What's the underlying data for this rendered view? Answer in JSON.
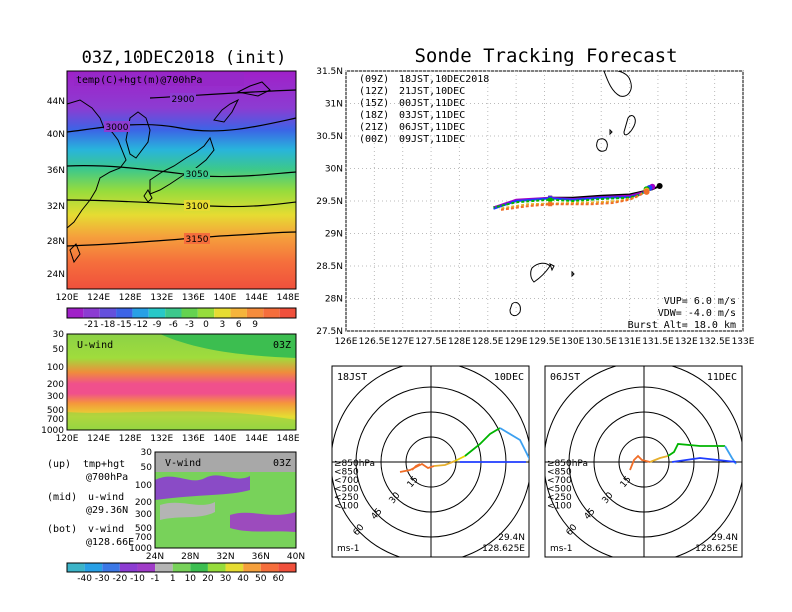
{
  "main_map": {
    "title": "03Z,10DEC2018 (init)",
    "label": "temp(C)+hgt(m)@700hPa",
    "contours": [
      "2900",
      "3000",
      "3050",
      "3100",
      "3150"
    ],
    "lat_ticks": [
      "44N",
      "40N",
      "36N",
      "32N",
      "28N",
      "24N"
    ],
    "lon_ticks": [
      "120E",
      "124E",
      "128E",
      "132E",
      "136E",
      "140E",
      "144E",
      "148E"
    ],
    "colorbar": [
      "-21",
      "-18",
      "-15",
      "-12",
      "-9",
      "-6",
      "-3",
      "0",
      "3",
      "6",
      "9"
    ]
  },
  "uwind": {
    "label": "U-wind",
    "time": "03Z",
    "p_ticks": [
      "30",
      "50",
      "100",
      "200",
      "300",
      "500",
      "700",
      "1000"
    ],
    "lon_ticks": [
      "120E",
      "124E",
      "128E",
      "132E",
      "136E",
      "140E",
      "144E",
      "148E"
    ]
  },
  "vwind": {
    "label": "V-wind",
    "time": "03Z",
    "p_ticks": [
      "30",
      "50",
      "100",
      "200",
      "300",
      "500",
      "700",
      "1000"
    ],
    "lat_ticks": [
      "24N",
      "28N",
      "32N",
      "36N",
      "40N"
    ],
    "colorbar": [
      "-40",
      "-30",
      "-20",
      "-10",
      "-1",
      "1",
      "10",
      "20",
      "30",
      "40",
      "50",
      "60"
    ]
  },
  "notes": [
    {
      "k": "(up)",
      "v": "tmp+hgt"
    },
    {
      "k": "",
      "v": "@700hPa"
    },
    {
      "k": "(mid)",
      "v": "u-wind"
    },
    {
      "k": "",
      "v": "@29.36N"
    },
    {
      "k": "(bot)",
      "v": "v-wind"
    },
    {
      "k": "",
      "v": "@128.66E"
    }
  ],
  "tracking": {
    "title": "Sonde Tracking Forecast",
    "legend": [
      {
        "code": "(09Z)",
        "text": "18JST,10DEC2018",
        "color": "#000000"
      },
      {
        "code": "(12Z)",
        "text": "21JST,10DEC",
        "color": "#a000c8"
      },
      {
        "code": "(15Z)",
        "text": "00JST,11DEC",
        "color": "#1e3cff"
      },
      {
        "code": "(18Z)",
        "text": "03JST,11DEC",
        "color": "#00b400"
      },
      {
        "code": "(21Z)",
        "text": "06JST,11DEC",
        "color": "#e6af2d"
      },
      {
        "code": "(00Z)",
        "text": "09JST,11DEC",
        "color": "#f06e28"
      }
    ],
    "lat_ticks": [
      "31.5N",
      "31N",
      "30.5N",
      "30N",
      "29.5N",
      "29N",
      "28.5N",
      "28N",
      "27.5N"
    ],
    "lon_ticks": [
      "126E",
      "126.5E",
      "127E",
      "127.5E",
      "128E",
      "128.5E",
      "129E",
      "129.5E",
      "130E",
      "130.5E",
      "131E",
      "131.5E",
      "132E",
      "132.5E",
      "133E"
    ],
    "info": [
      "VUP= 6.0 m/s",
      "VDW= -4.0 m/s",
      "Burst Alt= 18.0 km"
    ]
  },
  "hodo_left": {
    "time": "18JST",
    "date": "10DEC",
    "lat": "29.4N",
    "lon": "128.625E",
    "unit": "ms-1",
    "rings": [
      "15",
      "30",
      "45",
      "60"
    ]
  },
  "hodo_right": {
    "time": "06JST",
    "date": "11DEC",
    "lat": "29.4N",
    "lon": "128.625E",
    "unit": "ms-1",
    "rings": [
      "15",
      "30",
      "45",
      "60"
    ]
  },
  "hodo_legend": [
    {
      "t": "≥850hPa",
      "c": "#f06e28"
    },
    {
      "t": "<850",
      "c": "#e6af2d"
    },
    {
      "t": "<700",
      "c": "#e6d200"
    },
    {
      "t": "<500",
      "c": "#00b400"
    },
    {
      "t": "<250",
      "c": "#3ca0f0"
    },
    {
      "t": "<100",
      "c": "#1e3cff"
    }
  ],
  "chart_data": [
    {
      "type": "heatmap",
      "title": "03Z,10DEC2018 (init)",
      "subtitle": "temp(C)+hgt(m)@700hPa",
      "x_range": [
        "120E",
        "149E"
      ],
      "y_range": [
        "21N",
        "47N"
      ],
      "colorbar_levels": [
        -21,
        -18,
        -15,
        -12,
        -9,
        -6,
        -3,
        0,
        3,
        6,
        9
      ],
      "contour_labels": [
        2900,
        3000,
        3050,
        3100,
        3150
      ]
    },
    {
      "type": "heatmap",
      "title": "U-wind",
      "x_range": [
        "120E",
        "149E"
      ],
      "y_ticks": [
        30,
        50,
        100,
        200,
        300,
        500,
        700,
        1000
      ]
    },
    {
      "type": "heatmap",
      "title": "V-wind",
      "x_range": [
        "24N",
        "40N"
      ],
      "y_ticks": [
        30,
        50,
        100,
        200,
        300,
        500,
        700,
        1000
      ],
      "colorbar_levels": [
        -40,
        -30,
        -20,
        -10,
        -1,
        1,
        10,
        20,
        30,
        40,
        50,
        60
      ]
    },
    {
      "type": "line",
      "title": "Sonde Tracking Forecast",
      "xlim": [
        126,
        133
      ],
      "ylim": [
        27.5,
        31.5
      ],
      "series": [
        {
          "name": "(09Z) 18JST,10DEC2018",
          "points": [
            [
              131.53,
              29.73
            ],
            [
              131.4,
              29.68
            ],
            [
              131.0,
              29.6
            ],
            [
              130.5,
              29.58
            ],
            [
              130.0,
              29.55
            ],
            [
              129.6,
              29.55
            ],
            [
              129.0,
              29.5
            ],
            [
              128.6,
              29.4
            ]
          ]
        },
        {
          "name": "(12Z) 21JST,10DEC",
          "points": [
            [
              131.4,
              29.72
            ],
            [
              131.3,
              29.65
            ],
            [
              131.0,
              29.58
            ],
            [
              130.5,
              29.56
            ],
            [
              130.0,
              29.53
            ],
            [
              129.6,
              29.55
            ],
            [
              129.0,
              29.52
            ],
            [
              128.6,
              29.4
            ]
          ]
        },
        {
          "name": "(15Z) 00JST,11DEC",
          "points": [
            [
              131.35,
              29.7
            ],
            [
              131.2,
              29.6
            ],
            [
              131.0,
              29.56
            ],
            [
              130.5,
              29.55
            ],
            [
              130.0,
              29.52
            ],
            [
              129.6,
              29.54
            ],
            [
              129.0,
              29.5
            ],
            [
              128.6,
              29.38
            ]
          ]
        },
        {
          "name": "(18Z) 03JST,11DEC",
          "points": [
            [
              131.3,
              29.68
            ],
            [
              131.2,
              29.6
            ],
            [
              131.0,
              29.55
            ],
            [
              130.5,
              29.53
            ],
            [
              130.0,
              29.5
            ],
            [
              129.6,
              29.52
            ],
            [
              129.0,
              29.48
            ],
            [
              128.6,
              29.4
            ]
          ]
        },
        {
          "name": "(21Z) 06JST,11DEC",
          "points": [
            [
              131.3,
              29.66
            ],
            [
              131.1,
              29.55
            ],
            [
              130.8,
              29.5
            ],
            [
              130.4,
              29.48
            ],
            [
              130.0,
              29.47
            ],
            [
              129.6,
              29.46
            ],
            [
              129.2,
              29.45
            ],
            [
              128.7,
              29.38
            ]
          ]
        },
        {
          "name": "(00Z) 09JST,11DEC",
          "points": [
            [
              131.3,
              29.64
            ],
            [
              131.0,
              29.52
            ],
            [
              130.7,
              29.47
            ],
            [
              130.3,
              29.45
            ],
            [
              129.95,
              29.45
            ],
            [
              129.6,
              29.45
            ],
            [
              129.2,
              29.42
            ],
            [
              128.7,
              29.36
            ]
          ]
        }
      ]
    }
  ]
}
